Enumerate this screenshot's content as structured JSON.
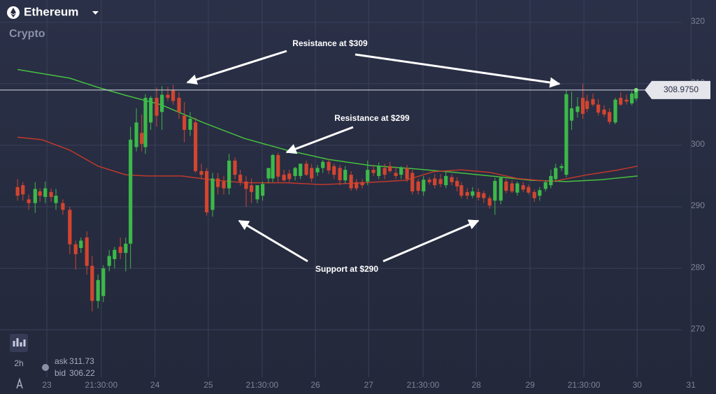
{
  "header": {
    "title": "Ethereum",
    "subtitle": "Crypto"
  },
  "sidebar": {
    "timeframe": "2h",
    "ask_label": "ask",
    "ask": "311.73",
    "bid_label": "bid",
    "bid": "306.22"
  },
  "chart_data": {
    "type": "candlestick",
    "annotations": [
      "Resistance at $309",
      "Resistance at $299",
      "Support at $290"
    ],
    "price_tag": {
      "value": 308.975,
      "label": "308.9750"
    },
    "up_color": "#3cb94a",
    "down_color": "#d2452f",
    "xlim": [
      0,
      134
    ],
    "xticks": [
      {
        "value": 8.8,
        "label": "23"
      },
      {
        "value": 19,
        "label": "21:30:00"
      },
      {
        "value": 29.1,
        "label": "24"
      },
      {
        "value": 39.1,
        "label": "25"
      },
      {
        "value": 49.2,
        "label": "21:30:00"
      },
      {
        "value": 59.2,
        "label": "26"
      },
      {
        "value": 69.2,
        "label": "27"
      },
      {
        "value": 79.4,
        "label": "21:30:00"
      },
      {
        "value": 89.4,
        "label": "28"
      },
      {
        "value": 99.5,
        "label": "29"
      },
      {
        "value": 109.6,
        "label": "21:30:00"
      },
      {
        "value": 119.6,
        "label": "30"
      },
      {
        "value": 129.7,
        "label": "31"
      }
    ],
    "ylim": [
      262.3,
      323.6
    ],
    "yticks": [
      270,
      280,
      290,
      300,
      310,
      320
    ],
    "grid": true,
    "x": [
      3.3,
      4.3,
      5.4,
      6.6,
      7.5,
      8.5,
      9.6,
      10.5,
      11.8,
      13.1,
      14.2,
      15.2,
      16.3,
      17.3,
      18.4,
      19.4,
      20.5,
      21.5,
      22.6,
      23.6,
      24.5,
      25.6,
      26.6,
      27.3,
      28.3,
      29.4,
      30.4,
      31.5,
      32.5,
      33.6,
      34.6,
      35.7,
      36.7,
      37.8,
      38.8,
      39.9,
      40.9,
      42,
      43,
      44.1,
      45.1,
      46.2,
      47.2,
      48.3,
      49.3,
      50.4,
      51.2,
      52.2,
      53.3,
      54.3,
      55.4,
      56.4,
      57.5,
      58.5,
      59.6,
      60.6,
      61.7,
      62.7,
      63.8,
      64.8,
      65.9,
      66.9,
      68,
      69,
      70.1,
      71.1,
      72.2,
      73.2,
      74.3,
      75.3,
      76.4,
      77.4,
      78.5,
      79.5,
      80.6,
      81.6,
      82.7,
      83.7,
      84.8,
      85.8,
      86.6,
      87.7,
      88.7,
      89.8,
      90.8,
      91.9,
      92.9,
      94,
      95,
      96.1,
      97.1,
      98.2,
      99.2,
      100.3,
      101.3,
      102.4,
      103.4,
      104.3,
      105.4,
      106.3,
      107.3,
      108.4,
      109.4,
      110.2,
      111.3,
      112.3,
      113.4,
      114.4,
      115.5,
      116.5,
      117.6,
      118.6,
      119.4
    ],
    "open": [
      293.2,
      293.5,
      291.2,
      290.6,
      292.5,
      291.6,
      292.4,
      290.6,
      290.6,
      289.5,
      283.9,
      283.3,
      285,
      280.4,
      274.7,
      275.5,
      280.4,
      281.5,
      283.5,
      282.5,
      284,
      299.7,
      302,
      299.7,
      303.7,
      307.7,
      305.4,
      308.2,
      308.9,
      307.7,
      304.8,
      302.5,
      303.7,
      295.8,
      295.8,
      289.5,
      294.6,
      294.1,
      293,
      297.5,
      295.2,
      294.1,
      293.5,
      291.2,
      291.8,
      294.6,
      294.6,
      298.4,
      295.2,
      295.4,
      295,
      295,
      297,
      296.3,
      295.6,
      296.3,
      297.3,
      296.6,
      296.3,
      294.3,
      295.2,
      294,
      294,
      294.1,
      296,
      295,
      296.3,
      296.6,
      295.5,
      295.2,
      296.3,
      295.5,
      294.1,
      292.5,
      294.4,
      294.6,
      294.5,
      293.5,
      294.8,
      294.2,
      293.5,
      292.4,
      291.8,
      292.4,
      292.2,
      291.4,
      291,
      291,
      294.1,
      293.8,
      292.3,
      293.5,
      293.2,
      292.4,
      291.8,
      292.9,
      293.5,
      294.5,
      296.3,
      295.2,
      304,
      305.4,
      307.7,
      307.2,
      307.5,
      306.6,
      305.8,
      305.4,
      303.7,
      307.7,
      307.4,
      306.8,
      307.6
    ],
    "high": [
      294.5,
      294,
      292,
      294,
      293,
      294.1,
      293,
      292.9,
      291.2,
      290,
      284.5,
      285,
      286,
      282,
      279,
      280.5,
      283,
      283.5,
      285,
      285,
      303,
      306,
      305,
      308.3,
      308,
      309.4,
      309.6,
      309.5,
      309.8,
      308.6,
      307,
      305.4,
      304.5,
      297,
      296.3,
      295.5,
      295.5,
      295,
      298.6,
      298,
      296,
      295,
      294.6,
      293.5,
      294.1,
      296,
      298.6,
      298.8,
      296,
      296,
      296.5,
      297,
      297.5,
      297,
      296.8,
      297.6,
      297.8,
      297,
      296.8,
      296.6,
      295.8,
      294.5,
      294.5,
      297.5,
      296.8,
      297.2,
      297,
      297.3,
      296.5,
      296.6,
      296.8,
      296,
      294.5,
      295,
      294.8,
      295.3,
      295.3,
      295.8,
      295.3,
      294.8,
      294,
      293,
      293.2,
      293,
      292.6,
      291.8,
      294.7,
      294.8,
      294.6,
      294.3,
      294.1,
      294,
      293.6,
      292.8,
      293.2,
      294.3,
      296,
      297,
      297,
      308.9,
      308.7,
      307.8,
      310,
      308.2,
      308.4,
      307.5,
      306.5,
      306,
      307.7,
      308.6,
      308.2,
      308.8,
      309.2
    ],
    "low": [
      291,
      291,
      289.5,
      289,
      290.8,
      290.6,
      290.8,
      289.5,
      288.7,
      282.3,
      279.8,
      282.5,
      279,
      273,
      273.5,
      274.5,
      279.5,
      280,
      281.5,
      279.5,
      280,
      299,
      299,
      298.6,
      302.5,
      303,
      302.5,
      307.2,
      306.6,
      304.3,
      300.5,
      301.5,
      295.5,
      294.5,
      288.6,
      288.4,
      292,
      292,
      292,
      294.5,
      293.5,
      290,
      290.6,
      290.6,
      291,
      293.8,
      294,
      294,
      294.1,
      294,
      294.3,
      294.5,
      295,
      294,
      295,
      295.5,
      295.3,
      294.5,
      293.5,
      293.8,
      292.6,
      292.6,
      293,
      293.5,
      295,
      294.5,
      294.5,
      295.5,
      294.5,
      294.5,
      294,
      292,
      292,
      291.8,
      293.6,
      293,
      293.2,
      293,
      293.5,
      292.5,
      291.4,
      291.2,
      291.4,
      291,
      290.6,
      289.7,
      288.7,
      290.4,
      292.2,
      292.2,
      291.8,
      292.4,
      292,
      290.8,
      291,
      292.5,
      293,
      294,
      295.8,
      294.8,
      302.5,
      304.5,
      304.3,
      305.4,
      306.3,
      304.8,
      304.6,
      303.4,
      303.4,
      306.4,
      306.6,
      306.5,
      307.2
    ],
    "close": [
      291.8,
      292,
      290.6,
      292.9,
      291.8,
      293,
      291.6,
      291.8,
      289.5,
      283.9,
      282.3,
      284.5,
      280.4,
      274.7,
      278.1,
      280,
      282,
      283,
      282.5,
      284,
      300.9,
      303.7,
      300.2,
      307.7,
      307.7,
      304.8,
      308.2,
      307.7,
      307.2,
      305.4,
      302.5,
      304.3,
      295.8,
      295.2,
      289.1,
      294.6,
      293.2,
      293,
      297.5,
      295.2,
      294.1,
      292.9,
      292.4,
      293.5,
      293.7,
      296.3,
      298.4,
      294.9,
      294.3,
      294.5,
      296.3,
      297,
      295.2,
      294.6,
      296.3,
      297.3,
      295.9,
      295.2,
      294.3,
      296,
      293,
      293,
      293.5,
      296,
      295.5,
      296.6,
      295.2,
      295.8,
      295,
      296.3,
      294.5,
      292.5,
      292.6,
      294.4,
      294,
      293.5,
      293.7,
      295,
      294,
      293.3,
      291.8,
      291.8,
      292.5,
      291.5,
      291.4,
      290.2,
      294.2,
      294.7,
      292.6,
      292.5,
      293.8,
      292.8,
      292.3,
      291.4,
      292.7,
      294,
      295,
      296.3,
      296.6,
      308.3,
      306,
      306.3,
      305.1,
      305.9,
      306.6,
      305.3,
      305,
      303.8,
      307.4,
      306.6,
      307.1,
      308.4,
      308.98
    ],
    "series": [
      {
        "color": "#45c13f",
        "x": [
          3.3,
          13.1,
          18.4,
          23.6,
          30.2,
          38.1,
          45.9,
          53.8,
          61.7,
          69.6,
          77.4,
          85.3,
          93.2,
          99.7,
          106.3,
          112.9,
          119.7
        ],
        "values": [
          312.3,
          310.9,
          309.4,
          308.1,
          306.6,
          303.7,
          301.1,
          299.2,
          297.7,
          296.7,
          296.2,
          295.6,
          294.9,
          294.3,
          294.1,
          294.4,
          295.0
        ]
      },
      {
        "color": "#c0392b",
        "x": [
          3.3,
          7.9,
          13.1,
          18.4,
          23.6,
          27.6,
          34.1,
          39.4,
          45.9,
          53.8,
          60.4,
          68.2,
          76.1,
          81.4,
          86.6,
          91.9,
          97.1,
          103.7,
          110.2,
          115.5,
          119.7
        ],
        "values": [
          301.3,
          300.9,
          299.2,
          296.6,
          295.2,
          295,
          295,
          294.4,
          293.9,
          293.9,
          293.6,
          293.9,
          294.3,
          295.7,
          296,
          295.6,
          294.6,
          294.1,
          295.2,
          295.9,
          296.6
        ]
      }
    ]
  }
}
